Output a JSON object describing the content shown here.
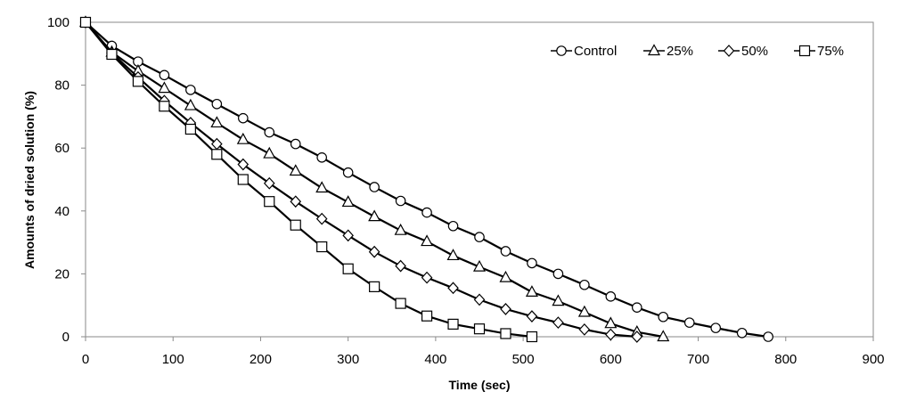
{
  "chart_data": {
    "type": "line",
    "title": "",
    "xlabel": "Time (sec)",
    "ylabel": "Amounts of dried solution (%)",
    "xlim": [
      0,
      900
    ],
    "ylim": [
      0,
      100
    ],
    "xticks": [
      0,
      100,
      200,
      300,
      400,
      500,
      600,
      700,
      800,
      900
    ],
    "yticks": [
      0,
      20,
      40,
      60,
      80,
      100
    ],
    "grid": false,
    "legend_position": "top-right",
    "series": [
      {
        "name": "Control",
        "marker": "circle",
        "x": [
          0,
          30,
          60,
          90,
          120,
          150,
          180,
          210,
          240,
          270,
          300,
          330,
          360,
          390,
          420,
          450,
          480,
          510,
          540,
          570,
          600,
          630,
          660,
          690,
          720,
          750,
          780
        ],
        "y": [
          100,
          92.5,
          87.5,
          83.2,
          78.5,
          74,
          69.5,
          65,
          61.3,
          57,
          52.2,
          47.6,
          43.2,
          39.5,
          35.2,
          31.7,
          27.2,
          23.4,
          20,
          16.5,
          12.8,
          9.3,
          6.3,
          4.5,
          2.8,
          1.2,
          0
        ]
      },
      {
        "name": "25%",
        "marker": "triangle",
        "x": [
          0,
          30,
          60,
          90,
          120,
          150,
          180,
          210,
          240,
          270,
          300,
          330,
          360,
          390,
          420,
          450,
          480,
          510,
          540,
          570,
          600,
          630,
          660
        ],
        "y": [
          100,
          90.5,
          84.5,
          79,
          73.5,
          68,
          62.7,
          58.2,
          52.7,
          47.3,
          42.8,
          38.2,
          33.8,
          30.3,
          25.8,
          22.2,
          18.8,
          14.2,
          11.3,
          7.8,
          4.2,
          1.5,
          0
        ]
      },
      {
        "name": "50%",
        "marker": "diamond",
        "x": [
          0,
          30,
          60,
          90,
          120,
          150,
          180,
          210,
          240,
          270,
          300,
          330,
          360,
          390,
          420,
          450,
          480,
          510,
          540,
          570,
          600,
          630
        ],
        "y": [
          100,
          90.2,
          82.5,
          75,
          68,
          61.3,
          54.8,
          48.8,
          43,
          37.5,
          32.2,
          27,
          22.5,
          18.8,
          15.5,
          11.8,
          8.8,
          6.5,
          4.5,
          2.3,
          0.7,
          0
        ]
      },
      {
        "name": "75%",
        "marker": "square",
        "x": [
          0,
          30,
          60,
          90,
          120,
          150,
          180,
          210,
          240,
          270,
          300,
          330,
          360,
          390,
          420,
          450,
          480,
          510
        ],
        "y": [
          100,
          89.8,
          81.2,
          73.3,
          66,
          58,
          50,
          43,
          35.5,
          28.6,
          21.6,
          15.9,
          10.6,
          6.6,
          4,
          2.5,
          1,
          0
        ]
      }
    ]
  }
}
